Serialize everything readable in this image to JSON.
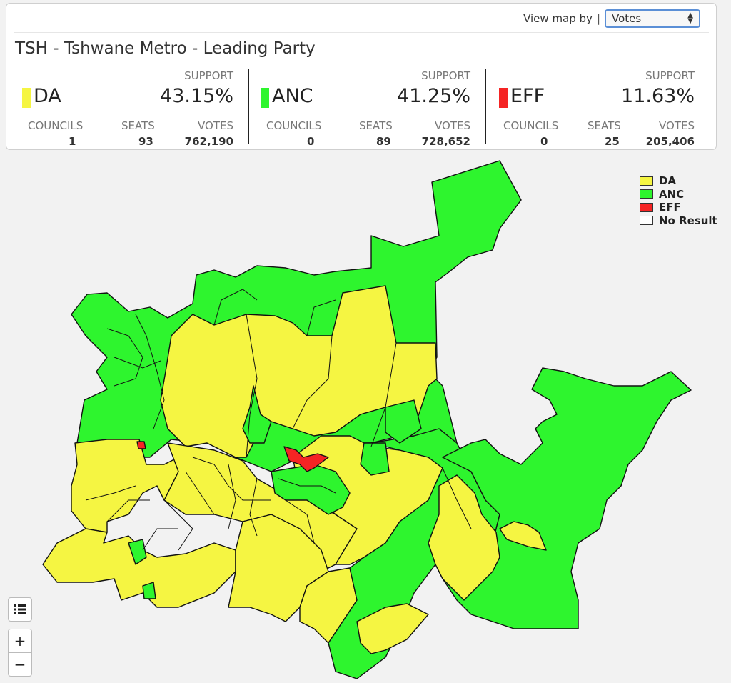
{
  "header": {
    "view_by_label": "View map by",
    "separator": "|",
    "view_by_value": "Votes",
    "title": "TSH - Tshwane Metro - Leading Party"
  },
  "labels": {
    "support": "SUPPORT",
    "councils": "COUNCILS",
    "seats": "SEATS",
    "votes": "VOTES"
  },
  "parties": [
    {
      "name": "DA",
      "color": "#f5f542",
      "support": "43.15%",
      "councils": "1",
      "seats": "93",
      "votes": "762,190"
    },
    {
      "name": "ANC",
      "color": "#2ef52e",
      "support": "41.25%",
      "councils": "0",
      "seats": "89",
      "votes": "728,652"
    },
    {
      "name": "EFF",
      "color": "#f52424",
      "support": "11.63%",
      "councils": "0",
      "seats": "25",
      "votes": "205,406"
    }
  ],
  "legend": [
    {
      "label": "DA",
      "color": "#f5f542"
    },
    {
      "label": "ANC",
      "color": "#2ef52e"
    },
    {
      "label": "EFF",
      "color": "#f52424"
    },
    {
      "label": "No Result",
      "color": "#ffffff"
    }
  ],
  "controls": {
    "layers_icon": "list-icon",
    "zoom_in": "+",
    "zoom_out": "−"
  }
}
